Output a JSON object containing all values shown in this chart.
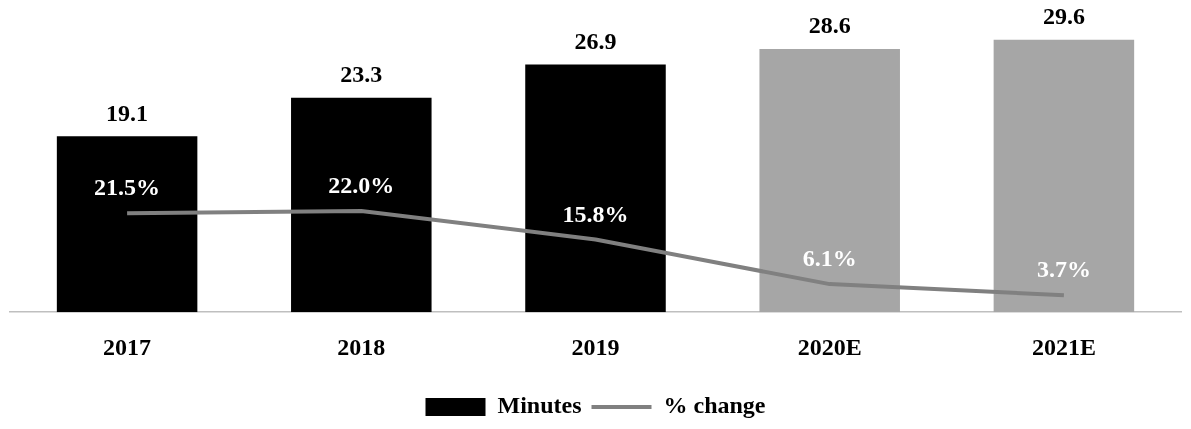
{
  "chart_data": {
    "type": "bar",
    "categories": [
      "2017",
      "2018",
      "2019",
      "2020E",
      "2021E"
    ],
    "series": [
      {
        "name": "Minutes",
        "color": "#000000",
        "colors": [
          "#000000",
          "#000000",
          "#000000",
          "#a6a6a6",
          "#a6a6a6"
        ],
        "values": [
          19.1,
          23.3,
          26.9,
          28.6,
          29.6
        ]
      },
      {
        "name": "% change",
        "type": "line",
        "axis": "y2",
        "color": "#808080",
        "values": [
          21.5,
          22.0,
          15.8,
          6.1,
          3.7
        ],
        "value_labels": [
          "21.5%",
          "22.0%",
          "15.8%",
          "6.1%",
          "3.7%"
        ]
      }
    ],
    "tick_labels": "x",
    "grid": false,
    "legend": "bottom",
    "marker": "none",
    "data_labels": true
  }
}
